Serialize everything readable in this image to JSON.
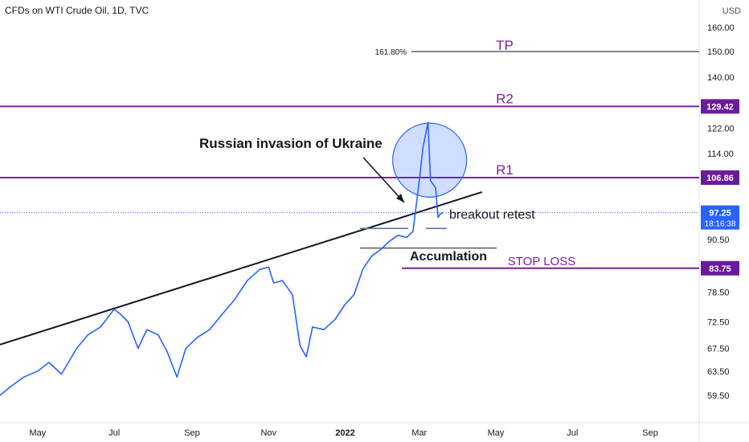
{
  "header": {
    "symbol_title": "CFDs on WTI Crude Oil, 1D, TVC",
    "currency": "USD"
  },
  "colors": {
    "price_line": "#2962ff",
    "level_line": "#7b1fa2",
    "trend_line": "#131722",
    "tick_text": "#131722",
    "circle_fill": "rgba(41,98,255,0.22)",
    "current_price_box": "#2962ff",
    "level_box": "#6a1b9a"
  },
  "chart_data": {
    "type": "line",
    "title": "CFDs on WTI Crude Oil, 1D, TVC",
    "ylabel": "USD",
    "y_scale": "log",
    "ylim": [
      56,
      165
    ],
    "y_ticks": [
      "59.50",
      "63.50",
      "67.50",
      "72.50",
      "78.50",
      "90.50",
      "114.00",
      "122.00",
      "140.00",
      "150.00",
      "160.00"
    ],
    "x_ticks": [
      "May",
      "Jul",
      "Sep",
      "Nov",
      "2022",
      "Mar",
      "May",
      "Jul",
      "Sep"
    ],
    "x_tick_dates": [
      "2021-05-01",
      "2021-07-01",
      "2021-09-01",
      "2021-11-01",
      "2022-01-01",
      "2022-03-01",
      "2022-05-01",
      "2022-07-01",
      "2022-09-01"
    ],
    "xlim": [
      "2021-04-01",
      "2022-10-10"
    ],
    "series": [
      {
        "x": [
          "2021-04-01",
          "2021-04-10",
          "2021-04-20",
          "2021-05-01",
          "2021-05-10",
          "2021-05-20",
          "2021-06-01",
          "2021-06-10",
          "2021-06-20",
          "2021-07-01",
          "2021-07-06",
          "2021-07-12",
          "2021-07-20",
          "2021-07-27",
          "2021-08-05",
          "2021-08-12",
          "2021-08-20",
          "2021-08-27",
          "2021-09-05",
          "2021-09-15",
          "2021-09-25",
          "2021-10-05",
          "2021-10-15",
          "2021-10-25",
          "2021-11-01",
          "2021-11-05",
          "2021-11-12",
          "2021-11-20",
          "2021-11-26",
          "2021-12-01",
          "2021-12-06",
          "2021-12-15",
          "2021-12-24",
          "2022-01-01",
          "2022-01-08",
          "2022-01-15",
          "2022-01-22",
          "2022-01-29",
          "2022-02-05",
          "2022-02-12",
          "2022-02-19",
          "2022-02-24",
          "2022-03-01",
          "2022-03-04",
          "2022-03-08",
          "2022-03-10",
          "2022-03-14",
          "2022-03-16",
          "2022-03-18",
          "2022-03-20"
        ],
        "values": [
          59.5,
          61.0,
          62.5,
          63.5,
          65.0,
          63.0,
          67.5,
          70.0,
          71.5,
          75.0,
          74.0,
          72.5,
          67.5,
          71.0,
          70.0,
          67.0,
          62.5,
          67.5,
          69.5,
          71.0,
          74.0,
          77.0,
          81.0,
          83.5,
          84.0,
          80.5,
          81.0,
          78.0,
          68.0,
          66.0,
          71.5,
          71.0,
          73.0,
          76.0,
          78.0,
          83.5,
          86.5,
          88.0,
          90.0,
          91.5,
          91.0,
          92.5,
          106.0,
          116.0,
          124.0,
          106.0,
          104.0,
          96.0,
          97.0,
          97.25
        ]
      }
    ],
    "horizontal_levels": [
      {
        "label": "TP",
        "value": 150.0,
        "fib_label": "161.80%"
      },
      {
        "label": "R2",
        "value": 129.42
      },
      {
        "label": "R1",
        "value": 106.86
      },
      {
        "label": "STOP LOSS",
        "value": 83.75
      }
    ],
    "current_price": "97.25",
    "countdown": "18:16:38",
    "trendline": {
      "start": [
        "2021-04-01",
        68.2
      ],
      "end": [
        "2022-04-20",
        102.8
      ]
    },
    "annotations": [
      {
        "text": "Russian invasion of Ukraine"
      },
      {
        "text": "breakout retest"
      },
      {
        "text": "Accumlation"
      }
    ]
  }
}
